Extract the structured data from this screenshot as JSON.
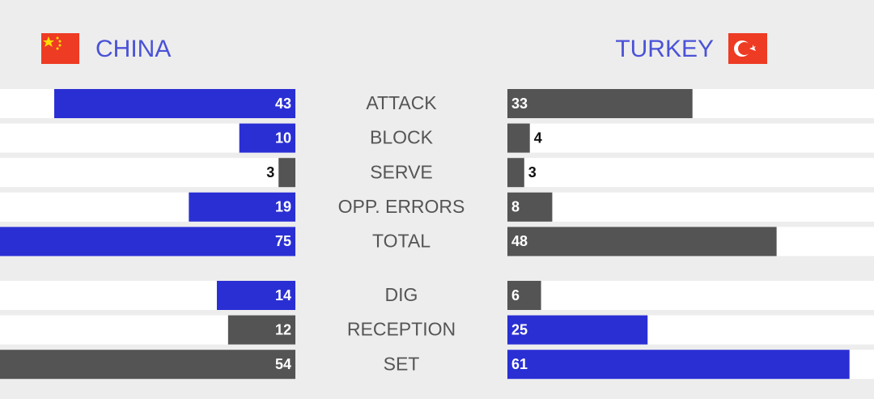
{
  "chart_data": {
    "type": "butterfly",
    "categories": [
      "ATTACK",
      "BLOCK",
      "SERVE",
      "OPP. ERRORS",
      "TOTAL",
      "DIG",
      "RECEPTION",
      "SET"
    ],
    "series": [
      {
        "name": "CHINA",
        "values": [
          43,
          10,
          3,
          19,
          75,
          14,
          12,
          54
        ],
        "colors": [
          "#2a2fd4",
          "#2a2fd4",
          "#545454",
          "#2a2fd4",
          "#2a2fd4",
          "#2a2fd4",
          "#545454",
          "#545454"
        ]
      },
      {
        "name": "TURKEY",
        "values": [
          33,
          4,
          3,
          8,
          48,
          6,
          25,
          61
        ],
        "colors": [
          "#545454",
          "#545454",
          "#545454",
          "#545454",
          "#545454",
          "#545454",
          "#2a2fd4",
          "#2a2fd4"
        ]
      }
    ]
  }
}
